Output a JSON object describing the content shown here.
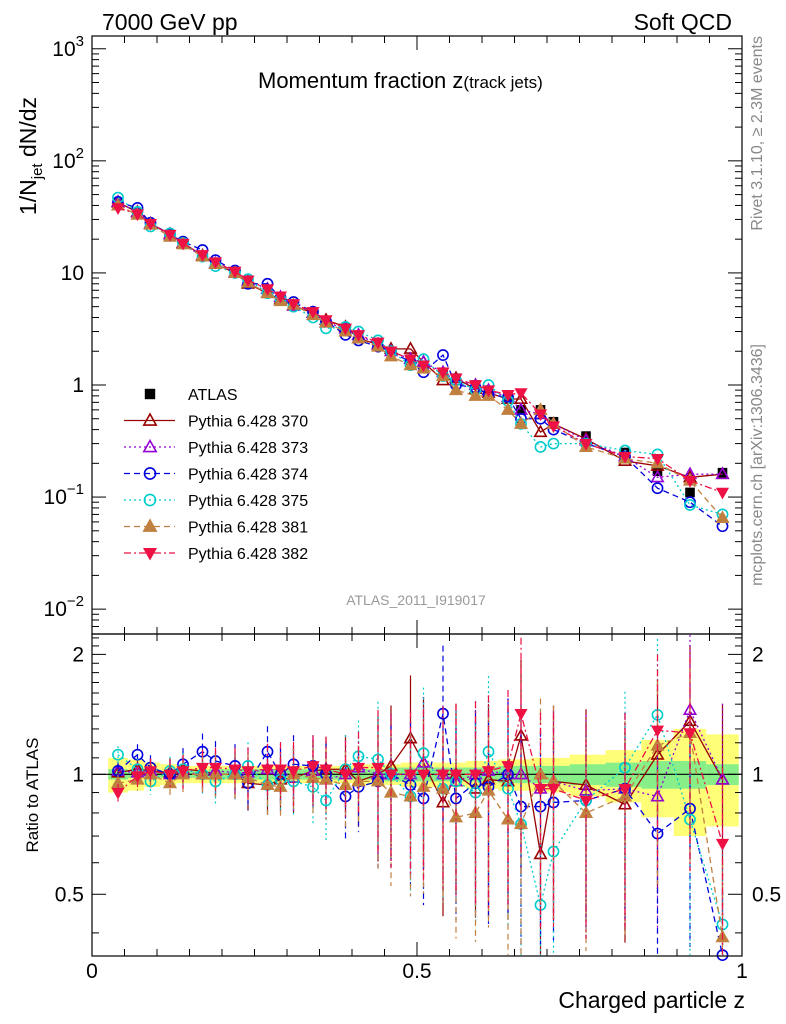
{
  "header": {
    "left": "7000 GeV pp",
    "right": "Soft QCD"
  },
  "side_labels": {
    "rivet": "Rivet 3.1.10, ≥ 2.3M events",
    "mcplots": "mcplots.cern.ch [arXiv:1306.3436]"
  },
  "analysis_id": "ATLAS_2011_I919017",
  "chart_data": [
    {
      "type": "scatter",
      "panel": "main",
      "title_main": "Momentum fraction ",
      "title_var": "z",
      "title_sub": "(track jets)",
      "ylabel_pre": "1/N",
      "ylabel_sub": "jet",
      "ylabel_post": " dN/dz",
      "yscale": "log",
      "ylim": [
        0.006,
        1300
      ],
      "xlim": [
        0,
        1
      ],
      "yticks": [
        {
          "v": 1000,
          "m": "10",
          "e": "3"
        },
        {
          "v": 100,
          "m": "10",
          "e": "2"
        },
        {
          "v": 10,
          "m": "10",
          "e": ""
        },
        {
          "v": 1,
          "m": "1",
          "e": ""
        },
        {
          "v": 0.1,
          "m": "10",
          "e": "−1"
        },
        {
          "v": 0.01,
          "m": "10",
          "e": "−2"
        }
      ],
      "x": [
        0.04,
        0.07,
        0.09,
        0.12,
        0.14,
        0.17,
        0.19,
        0.22,
        0.24,
        0.27,
        0.29,
        0.31,
        0.34,
        0.36,
        0.39,
        0.41,
        0.44,
        0.46,
        0.49,
        0.51,
        0.54,
        0.56,
        0.59,
        0.61,
        0.64,
        0.66,
        0.69,
        0.71,
        0.76,
        0.82,
        0.87,
        0.92,
        0.97
      ],
      "series": [
        {
          "name": "ATLAS",
          "color": "#000000",
          "marker": "square-filled",
          "line": "none",
          "y": [
            42.0,
            34.0,
            27.0,
            22.0,
            18.0,
            14.0,
            12.0,
            10.0,
            8.4,
            7.0,
            6.0,
            5.2,
            4.3,
            3.7,
            3.2,
            2.7,
            2.3,
            2.0,
            1.7,
            1.5,
            1.3,
            1.15,
            1.0,
            0.88,
            0.78,
            0.6,
            0.6,
            0.47,
            0.35,
            0.25,
            0.17,
            0.11,
            0.165
          ]
        },
        {
          "name": "Pythia 6.428 370",
          "color": "#990000",
          "marker": "triangle-open",
          "line": "solid",
          "y": [
            42.5,
            35.0,
            27.5,
            22.2,
            18.5,
            14.3,
            12.0,
            10.0,
            8.0,
            6.6,
            5.8,
            5.1,
            4.4,
            3.8,
            3.3,
            2.6,
            2.3,
            2.1,
            2.1,
            1.6,
            1.1,
            1.15,
            0.92,
            0.85,
            0.75,
            0.75,
            0.38,
            0.45,
            0.33,
            0.21,
            0.19,
            0.15,
            0.16
          ]
        },
        {
          "name": "Pythia 6.428 373",
          "color": "#9400d3",
          "marker": "triangle-open",
          "line": "dotted",
          "y": [
            43.0,
            34.5,
            27.5,
            22.0,
            18.2,
            14.0,
            12.2,
            10.1,
            8.5,
            7.2,
            6.1,
            5.1,
            4.4,
            3.6,
            3.2,
            2.8,
            2.3,
            2.0,
            1.7,
            1.6,
            1.3,
            1.1,
            1.0,
            0.9,
            0.78,
            0.6,
            0.55,
            0.45,
            0.32,
            0.23,
            0.15,
            0.16,
            0.16
          ]
        },
        {
          "name": "Pythia 6.428 374",
          "color": "#0000dd",
          "marker": "circle-open",
          "line": "dashed",
          "y": [
            43.0,
            38.0,
            28.0,
            22.0,
            19.0,
            16.0,
            13.0,
            10.5,
            8.0,
            8.0,
            6.0,
            5.5,
            4.5,
            3.7,
            2.8,
            2.5,
            2.2,
            2.0,
            1.6,
            1.3,
            1.85,
            1.0,
            0.95,
            0.82,
            0.78,
            0.5,
            0.5,
            0.4,
            0.3,
            0.23,
            0.12,
            0.09,
            0.055
          ]
        },
        {
          "name": "Pythia 6.428 375",
          "color": "#00cccc",
          "marker": "circle-open",
          "line": "dotted",
          "y": [
            47.0,
            35.0,
            26.0,
            22.5,
            18.5,
            14.0,
            11.5,
            10.0,
            8.8,
            6.6,
            5.8,
            5.0,
            4.0,
            3.2,
            3.3,
            3.0,
            2.5,
            2.0,
            1.5,
            1.7,
            1.2,
            1.1,
            0.9,
            1.0,
            0.72,
            0.45,
            0.28,
            0.3,
            0.3,
            0.26,
            0.24,
            0.085,
            0.07
          ]
        },
        {
          "name": "Pythia 6.428 381",
          "color": "#c08040",
          "marker": "triangle-filled",
          "line": "dashed",
          "y": [
            40.0,
            33.0,
            27.0,
            21.0,
            18.0,
            14.0,
            12.0,
            10.0,
            8.2,
            6.6,
            5.6,
            5.2,
            4.2,
            3.6,
            3.0,
            2.6,
            2.2,
            1.8,
            1.5,
            1.4,
            1.2,
            0.9,
            0.8,
            0.8,
            0.6,
            0.45,
            0.6,
            0.45,
            0.28,
            0.22,
            0.2,
            0.14,
            0.065
          ]
        },
        {
          "name": "Pythia 6.428 382",
          "color": "#ee1144",
          "marker": "triangle-down-filled",
          "line": "dashdot",
          "y": [
            38.0,
            33.5,
            27.5,
            22.0,
            18.3,
            14.5,
            12.5,
            10.3,
            8.6,
            7.2,
            6.2,
            5.3,
            4.5,
            3.8,
            3.2,
            2.8,
            2.4,
            2.0,
            1.7,
            1.5,
            1.3,
            1.15,
            1.0,
            0.9,
            0.82,
            0.85,
            0.55,
            0.43,
            0.3,
            0.23,
            0.22,
            0.14,
            0.11
          ]
        }
      ]
    },
    {
      "type": "scatter",
      "panel": "ratio",
      "ylabel": "Ratio to ATLAS",
      "xlabel": "Charged particle z",
      "ylim": [
        0.35,
        2.25
      ],
      "xlim": [
        0,
        1
      ],
      "yticks": [
        2,
        1,
        0.5
      ],
      "xticks": [
        0,
        0.5,
        1
      ],
      "band_inner": [
        0.03,
        0.02,
        0.02,
        0.02,
        0.02,
        0.02,
        0.03,
        0.03,
        0.03,
        0.03,
        0.03,
        0.03,
        0.03,
        0.03,
        0.03,
        0.03,
        0.03,
        0.04,
        0.04,
        0.04,
        0.04,
        0.04,
        0.04,
        0.04,
        0.05,
        0.05,
        0.05,
        0.05,
        0.06,
        0.07,
        0.08,
        0.08,
        0.06
      ],
      "band_outer": [
        0.1,
        0.09,
        0.07,
        0.06,
        0.05,
        0.05,
        0.05,
        0.05,
        0.05,
        0.05,
        0.05,
        0.05,
        0.05,
        0.05,
        0.05,
        0.06,
        0.06,
        0.06,
        0.07,
        0.07,
        0.07,
        0.07,
        0.08,
        0.08,
        0.09,
        0.09,
        0.1,
        0.1,
        0.12,
        0.15,
        0.22,
        0.3,
        0.26
      ],
      "series": [
        {
          "name": "Pythia 6.428 370",
          "y": [
            1.01,
            1.03,
            1.02,
            1.01,
            1.03,
            1.02,
            1.0,
            1.0,
            0.95,
            0.94,
            0.97,
            0.98,
            1.02,
            1.03,
            1.03,
            0.96,
            1.0,
            1.05,
            1.23,
            1.07,
            0.85,
            1.0,
            0.92,
            0.97,
            0.96,
            1.25,
            0.63,
            0.96,
            0.94,
            0.84,
            1.12,
            1.36,
            0.97
          ]
        },
        {
          "name": "Pythia 6.428 373",
          "y": [
            1.02,
            1.01,
            1.02,
            1.0,
            1.01,
            1.0,
            1.02,
            1.01,
            1.01,
            1.03,
            1.02,
            0.98,
            1.02,
            0.97,
            1.0,
            1.04,
            1.0,
            1.0,
            1.0,
            1.07,
            1.0,
            0.96,
            1.0,
            1.02,
            1.0,
            1.0,
            0.92,
            0.96,
            0.91,
            0.92,
            0.88,
            1.45,
            0.97
          ]
        },
        {
          "name": "Pythia 6.428 374",
          "y": [
            1.02,
            1.12,
            1.04,
            1.0,
            1.06,
            1.14,
            1.08,
            1.05,
            0.95,
            1.14,
            1.0,
            1.06,
            1.05,
            1.0,
            0.88,
            0.93,
            0.96,
            1.0,
            0.94,
            0.87,
            1.42,
            0.87,
            0.95,
            0.93,
            1.0,
            0.83,
            0.83,
            0.85,
            0.86,
            0.92,
            0.71,
            0.82,
            0.33
          ]
        },
        {
          "name": "Pythia 6.428 375",
          "y": [
            1.12,
            1.03,
            0.96,
            1.02,
            1.03,
            1.0,
            0.96,
            1.0,
            1.05,
            0.94,
            0.97,
            0.96,
            0.93,
            0.86,
            1.03,
            1.11,
            1.09,
            1.0,
            0.88,
            1.13,
            0.92,
            0.96,
            0.9,
            1.14,
            0.92,
            0.75,
            0.47,
            0.64,
            0.86,
            1.04,
            1.41,
            0.77,
            0.42
          ]
        },
        {
          "name": "Pythia 6.428 381",
          "y": [
            0.95,
            0.97,
            1.0,
            0.95,
            1.0,
            1.0,
            1.0,
            1.0,
            0.98,
            0.94,
            0.93,
            1.0,
            0.98,
            0.97,
            0.94,
            0.96,
            0.96,
            0.9,
            0.88,
            0.93,
            0.92,
            0.78,
            0.8,
            0.91,
            0.77,
            0.75,
            1.0,
            0.96,
            0.8,
            0.88,
            1.18,
            1.27,
            0.39
          ]
        },
        {
          "name": "Pythia 6.428 382",
          "y": [
            0.9,
            0.99,
            1.02,
            1.0,
            1.02,
            1.04,
            1.04,
            1.03,
            1.02,
            1.03,
            1.03,
            1.02,
            1.05,
            1.03,
            1.0,
            1.04,
            1.04,
            1.0,
            1.0,
            1.0,
            1.0,
            1.0,
            1.0,
            1.02,
            1.05,
            1.42,
            0.92,
            0.92,
            0.86,
            0.92,
            1.29,
            1.27,
            0.67
          ]
        }
      ]
    }
  ]
}
